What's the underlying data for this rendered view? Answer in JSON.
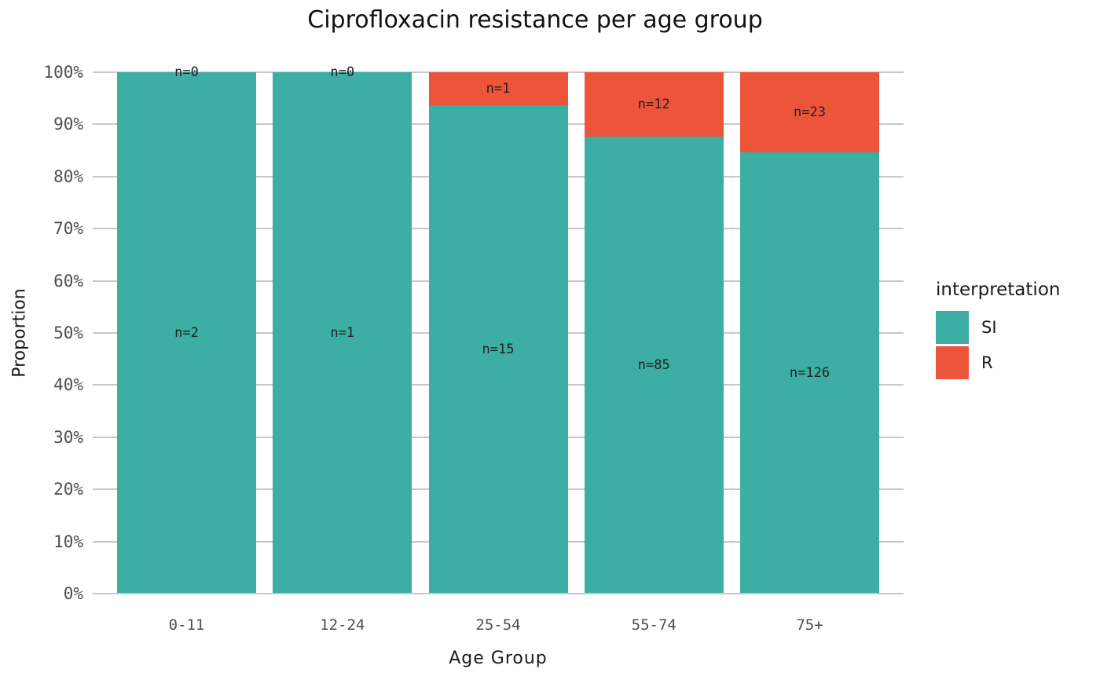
{
  "title": "Ciprofloxacin resistance per age group",
  "axes": {
    "x_title": "Age Group",
    "y_title": "Proportion",
    "y_tick_labels": [
      "0%",
      "10%",
      "20%",
      "30%",
      "40%",
      "50%",
      "60%",
      "70%",
      "80%",
      "90%",
      "100%"
    ]
  },
  "legend": {
    "title": "interpretation",
    "items": [
      {
        "label": "SI",
        "color": "#3CAEA3"
      },
      {
        "label": "R",
        "color": "#ED553B"
      }
    ]
  },
  "colors": {
    "si": "#3CAEA3",
    "r": "#ED553B",
    "grid": "#C8C8C8",
    "tick_text": "#4D4D4D",
    "bar_label_text": "#1F1F1F"
  },
  "chart_data": {
    "type": "bar",
    "subtype": "stacked-100-percent",
    "title": "Ciprofloxacin resistance per age group",
    "xlabel": "Age Group",
    "ylabel": "Proportion",
    "ylim": [
      0,
      100
    ],
    "y_tick_step_percent": 10,
    "grid": true,
    "legend_position": "right",
    "categories": [
      "0-11",
      "12-24",
      "25-54",
      "55-74",
      "75+"
    ],
    "series": [
      {
        "name": "SI",
        "color": "#3CAEA3",
        "counts": [
          2,
          1,
          15,
          85,
          126
        ],
        "labels": [
          "n=2",
          "n=1",
          "n=15",
          "n=85",
          "n=126"
        ],
        "percent_of_total": [
          100,
          100,
          93.75,
          87.63,
          84.56
        ]
      },
      {
        "name": "R",
        "color": "#ED553B",
        "counts": [
          0,
          0,
          1,
          12,
          23
        ],
        "labels": [
          "n=0",
          "n=0",
          "n=1",
          "n=12",
          "n=23"
        ],
        "percent_of_total": [
          0,
          0,
          6.25,
          12.37,
          15.44
        ]
      }
    ]
  }
}
